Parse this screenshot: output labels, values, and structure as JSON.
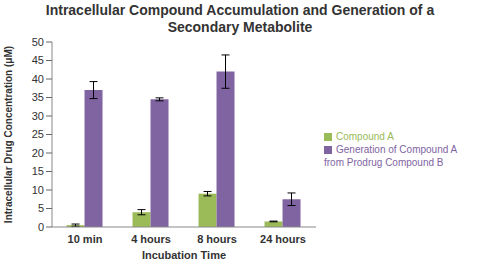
{
  "chart_data": {
    "type": "bar",
    "title": "Intracellular Compound Accumulation and Generation of a Secondary Metabolite",
    "x_label": "Incubation Time",
    "y_label": "Intracellular Drug Concentration (μM)",
    "categories": [
      "10 min",
      "4 hours",
      "8 hours",
      "24 hours"
    ],
    "series": [
      {
        "name": "Compound A",
        "color": "#9bbb59",
        "values": [
          0.5,
          4,
          9,
          1.5
        ],
        "errors": [
          0.3,
          0.7,
          0.6,
          0.1
        ]
      },
      {
        "name": "Generation of Compound A from Prodrug Compound B",
        "color": "#8064a2",
        "values": [
          37,
          34.5,
          42,
          7.5
        ],
        "errors": [
          2.3,
          0.4,
          4.5,
          1.7
        ]
      }
    ],
    "ylim": [
      0,
      50
    ],
    "yticks": [
      0,
      5,
      10,
      15,
      20,
      25,
      30,
      35,
      40,
      45,
      50
    ],
    "grid": false,
    "legend": "right"
  }
}
